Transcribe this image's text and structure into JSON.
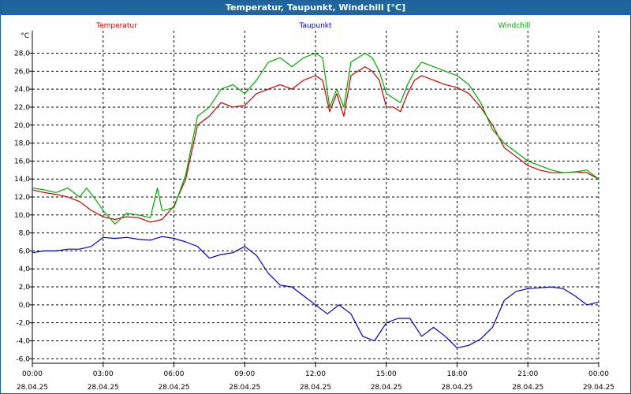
{
  "window": {
    "title": "Temperatur, Taupunkt, Windchill [°C]"
  },
  "chart_data": {
    "type": "line",
    "ylabel": "°C",
    "ylim": [
      -6.5,
      30.5
    ],
    "y_ticks": [
      28.0,
      26.0,
      24.0,
      22.0,
      20.0,
      18.0,
      16.0,
      14.0,
      12.0,
      10.0,
      8.0,
      6.0,
      4.0,
      2.0,
      0.0,
      -2.0,
      -4.0,
      -6.0
    ],
    "y_tick_labels": [
      "28,0",
      "26,0",
      "24,0",
      "22,0",
      "20,0",
      "18,0",
      "16,0",
      "14,0",
      "12,0",
      "10,0",
      "8,0",
      "6,0",
      "4,0",
      "2,0",
      "0,0",
      "-2,0",
      "-4,0",
      "-6,0"
    ],
    "xlim": [
      0,
      24
    ],
    "x_ticks": [
      0,
      3,
      6,
      9,
      12,
      15,
      18,
      21,
      24
    ],
    "x_tick_times": [
      "00:00",
      "03:00",
      "06:00",
      "09:00",
      "12:00",
      "15:00",
      "18:00",
      "21:00",
      "00:00"
    ],
    "x_tick_dates": [
      "28.04.25",
      "28.04.25",
      "28.04.25",
      "28.04.25",
      "28.04.25",
      "28.04.25",
      "28.04.25",
      "28.04.25",
      "29.04.25"
    ],
    "grid": true,
    "legend_placement": "top",
    "series": [
      {
        "name": "Temperatur",
        "color": "#cc0000",
        "x": [
          0,
          0.5,
          1,
          1.5,
          2,
          2.5,
          3,
          3.5,
          4,
          4.5,
          5,
          5.5,
          6,
          6.5,
          7,
          7.5,
          8,
          8.5,
          9,
          9.5,
          10,
          10.5,
          11,
          11.5,
          12,
          12.3,
          12.6,
          12.9,
          13.2,
          13.5,
          13.8,
          14.1,
          14.4,
          14.7,
          15,
          15.3,
          15.6,
          15.9,
          16.2,
          16.5,
          17,
          17.5,
          18,
          18.5,
          19,
          19.5,
          20,
          20.5,
          21,
          21.5,
          22,
          22.5,
          23,
          23.5,
          24
        ],
        "values": [
          12.8,
          12.5,
          12.3,
          12.0,
          11.5,
          10.5,
          9.8,
          9.5,
          9.8,
          9.7,
          9.2,
          9.5,
          11.0,
          14.0,
          20.0,
          21.0,
          22.5,
          22.0,
          22.2,
          23.5,
          24.0,
          24.5,
          24.0,
          25.0,
          25.5,
          25.0,
          21.5,
          23.5,
          21.0,
          25.5,
          26.0,
          26.5,
          26.0,
          25.0,
          22.0,
          22.0,
          21.5,
          23.5,
          25.0,
          25.5,
          25.0,
          24.5,
          24.2,
          23.5,
          22.0,
          20.0,
          17.5,
          16.5,
          15.5,
          15.0,
          14.7,
          14.7,
          14.8,
          14.7,
          14.0
        ]
      },
      {
        "name": "Taupunkt",
        "color": "#0000cc",
        "x": [
          0,
          0.5,
          1,
          1.5,
          2,
          2.5,
          3,
          3.5,
          4,
          4.5,
          5,
          5.5,
          6,
          6.5,
          7,
          7.5,
          8,
          8.5,
          9,
          9.5,
          10,
          10.5,
          11,
          11.5,
          12,
          12.5,
          13,
          13.5,
          14,
          14.5,
          15,
          15.5,
          16,
          16.5,
          17,
          17.5,
          18,
          18.5,
          19,
          19.5,
          20,
          20.5,
          21,
          21.5,
          22,
          22.5,
          23,
          23.5,
          24
        ],
        "values": [
          5.8,
          6.0,
          6.0,
          6.2,
          6.2,
          6.5,
          7.5,
          7.4,
          7.5,
          7.3,
          7.2,
          7.6,
          7.4,
          7.0,
          6.5,
          5.2,
          5.6,
          5.8,
          6.5,
          5.5,
          3.5,
          2.2,
          2.0,
          1.0,
          0.0,
          -1.0,
          0.0,
          -1.0,
          -3.5,
          -4.0,
          -2.0,
          -1.5,
          -1.5,
          -3.5,
          -2.5,
          -3.5,
          -4.8,
          -4.5,
          -3.8,
          -2.5,
          0.5,
          1.5,
          1.8,
          1.9,
          2.0,
          1.8,
          1.0,
          0.0,
          0.3
        ]
      },
      {
        "name": "Windchill",
        "color": "#00aa00",
        "x": [
          0,
          0.5,
          1,
          1.5,
          2,
          2.3,
          2.6,
          3,
          3.5,
          4,
          4.5,
          5,
          5.3,
          5.5,
          6,
          6.5,
          7,
          7.5,
          8,
          8.5,
          9,
          9.5,
          10,
          10.5,
          11,
          11.5,
          12,
          12.3,
          12.6,
          12.9,
          13.2,
          13.5,
          13.8,
          14.1,
          14.4,
          14.7,
          15,
          15.3,
          15.6,
          15.9,
          16.2,
          16.5,
          17,
          17.5,
          18,
          18.5,
          19,
          19.5,
          20,
          20.5,
          21,
          21.5,
          22,
          22.5,
          23,
          23.5,
          24
        ],
        "values": [
          13.0,
          12.8,
          12.5,
          13.0,
          12.0,
          13.0,
          12.0,
          10.5,
          9.0,
          10.2,
          10.0,
          9.7,
          13.0,
          10.5,
          10.8,
          14.5,
          21.0,
          22.0,
          24.0,
          24.5,
          23.5,
          25.0,
          27.0,
          27.5,
          26.5,
          27.5,
          28.0,
          27.5,
          22.0,
          24.0,
          22.0,
          27.0,
          27.5,
          28.0,
          27.5,
          26.0,
          23.5,
          23.0,
          22.5,
          24.5,
          26.0,
          27.0,
          26.5,
          26.0,
          25.5,
          24.5,
          22.5,
          19.5,
          18.0,
          17.0,
          16.0,
          15.5,
          15.0,
          14.7,
          14.8,
          15.0,
          14.0
        ]
      }
    ]
  }
}
